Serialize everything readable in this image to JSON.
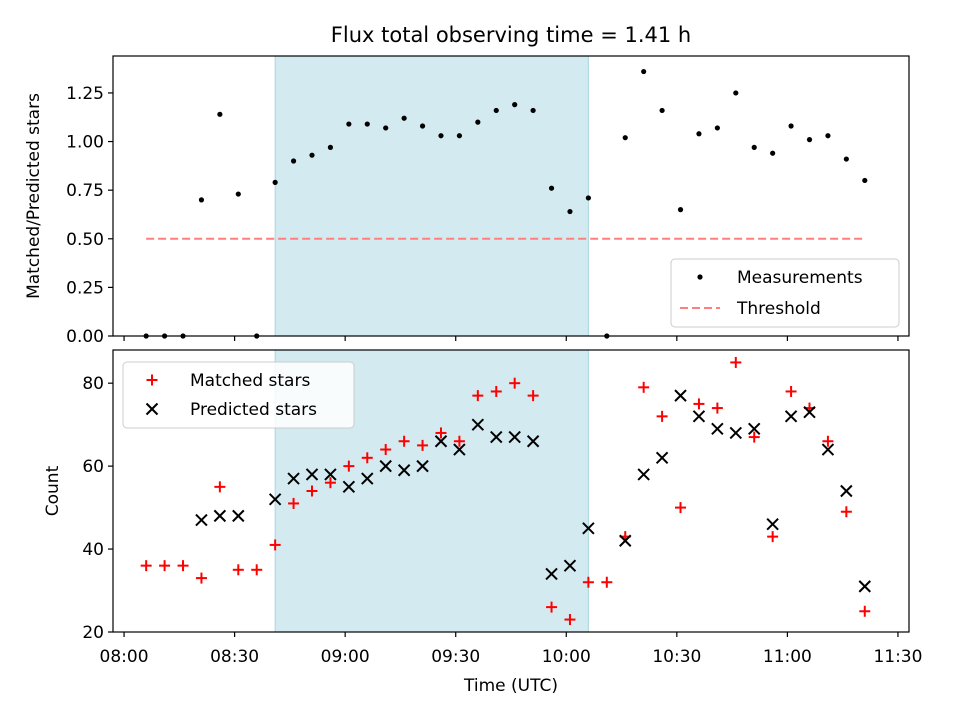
{
  "title": "Flux total observing time = 1.41 h",
  "colors": {
    "measurement": "#000000",
    "threshold": "#ff7f7f",
    "matched": "#ff0000",
    "predicted": "#000000",
    "shade": "#d3eaf0",
    "shade_edge": "#a9d6df"
  },
  "shaded_interval": [
    "08:41",
    "10:06"
  ],
  "chart_data": [
    {
      "type": "scatter",
      "ylabel": "Matched/Predicted stars",
      "ylim": [
        0,
        1.44
      ],
      "yticks": [
        0.0,
        0.25,
        0.5,
        0.75,
        1.0,
        1.25
      ],
      "ytick_labels": [
        "0.00",
        "0.25",
        "0.50",
        "0.75",
        "1.00",
        "1.25"
      ],
      "grid": false,
      "legend_position": "lower-right",
      "legend": [
        "Measurements",
        "Threshold"
      ],
      "series": [
        {
          "name": "Measurements",
          "marker": "dot",
          "x": [
            "08:06",
            "08:11",
            "08:16",
            "08:21",
            "08:26",
            "08:31",
            "08:36",
            "08:41",
            "08:46",
            "08:51",
            "08:56",
            "09:01",
            "09:06",
            "09:11",
            "09:16",
            "09:21",
            "09:26",
            "09:31",
            "09:36",
            "09:41",
            "09:46",
            "09:51",
            "09:56",
            "10:01",
            "10:06",
            "10:11",
            "10:16",
            "10:21",
            "10:26",
            "10:31",
            "10:36",
            "10:41",
            "10:46",
            "10:51",
            "10:56",
            "11:01",
            "11:06",
            "11:11",
            "11:16",
            "11:21"
          ],
          "y": [
            0.0,
            0.0,
            0.0,
            0.7,
            1.14,
            0.73,
            0.0,
            0.79,
            0.9,
            0.93,
            0.97,
            1.09,
            1.09,
            1.07,
            1.12,
            1.08,
            1.03,
            1.03,
            1.1,
            1.16,
            1.19,
            1.16,
            0.76,
            0.64,
            0.71,
            0.0,
            1.02,
            1.36,
            1.16,
            0.65,
            1.04,
            1.07,
            1.25,
            0.97,
            0.94,
            1.08,
            1.01,
            1.03,
            0.91,
            0.8
          ]
        },
        {
          "name": "Threshold",
          "marker": "dashed-line",
          "x": [
            "08:06",
            "11:21"
          ],
          "y": [
            0.5,
            0.5
          ]
        }
      ]
    },
    {
      "type": "scatter",
      "ylabel": "Count",
      "xlabel": "Time (UTC)",
      "ylim": [
        20,
        88
      ],
      "yticks": [
        20,
        40,
        60,
        80
      ],
      "xticks": [
        "08:00",
        "08:30",
        "09:00",
        "09:30",
        "10:00",
        "10:30",
        "11:00",
        "11:30"
      ],
      "grid": false,
      "legend_position": "upper-left",
      "legend": [
        "Matched stars",
        "Predicted stars"
      ],
      "series": [
        {
          "name": "Matched stars",
          "marker": "plus",
          "x": [
            "08:06",
            "08:11",
            "08:16",
            "08:21",
            "08:26",
            "08:31",
            "08:36",
            "08:41",
            "08:46",
            "08:51",
            "08:56",
            "09:01",
            "09:06",
            "09:11",
            "09:16",
            "09:21",
            "09:26",
            "09:31",
            "09:36",
            "09:41",
            "09:46",
            "09:51",
            "09:56",
            "10:01",
            "10:06",
            "10:11",
            "10:16",
            "10:21",
            "10:26",
            "10:31",
            "10:36",
            "10:41",
            "10:46",
            "10:51",
            "10:56",
            "11:01",
            "11:06",
            "11:11",
            "11:16",
            "11:21"
          ],
          "y": [
            36,
            36,
            36,
            33,
            55,
            35,
            35,
            41,
            51,
            54,
            56,
            60,
            62,
            64,
            66,
            65,
            68,
            66,
            77,
            78,
            80,
            77,
            26,
            23,
            32,
            32,
            43,
            79,
            72,
            50,
            75,
            74,
            85,
            67,
            43,
            78,
            74,
            66,
            49,
            25
          ]
        },
        {
          "name": "Predicted stars",
          "marker": "x",
          "x": [
            "08:21",
            "08:26",
            "08:31",
            "08:41",
            "08:46",
            "08:51",
            "08:56",
            "09:01",
            "09:06",
            "09:11",
            "09:16",
            "09:21",
            "09:26",
            "09:31",
            "09:36",
            "09:41",
            "09:46",
            "09:51",
            "09:56",
            "10:01",
            "10:06",
            "10:16",
            "10:21",
            "10:26",
            "10:31",
            "10:36",
            "10:41",
            "10:46",
            "10:51",
            "10:56",
            "11:01",
            "11:06",
            "11:11",
            "11:16",
            "11:21"
          ],
          "y": [
            47,
            48,
            48,
            52,
            57,
            58,
            58,
            55,
            57,
            60,
            59,
            60,
            66,
            64,
            70,
            67,
            67,
            66,
            34,
            36,
            45,
            42,
            58,
            62,
            77,
            72,
            69,
            68,
            69,
            46,
            72,
            73,
            64,
            54,
            31
          ]
        }
      ]
    }
  ]
}
